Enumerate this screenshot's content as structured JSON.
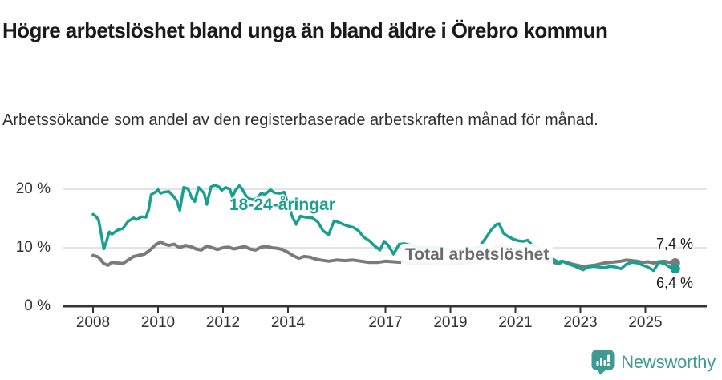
{
  "header": {
    "title": "Högre arbetslöshet bland unga än bland äldre i Örebro kommun",
    "subtitle": "Arbetssökande som andel av den registerbaserade arbetskraften månad för månad."
  },
  "chart_data": {
    "type": "line",
    "title": "Högre arbetslöshet bland unga än bland äldre i Örebro kommun",
    "subtitle": "Arbetssökande som andel av den registerbaserade arbetskraften månad för månad.",
    "unit": "%",
    "grid": "horizontal-only",
    "x_axis": {
      "range": [
        2007.9,
        2026.1
      ],
      "ticks": [
        {
          "label": "2008",
          "year": 2008
        },
        {
          "label": "2010",
          "year": 2010
        },
        {
          "label": "2012",
          "year": 2012
        },
        {
          "label": "2014",
          "year": 2014
        },
        {
          "label": "2017",
          "year": 2017
        },
        {
          "label": "2019",
          "year": 2019
        },
        {
          "label": "2021",
          "year": 2021
        },
        {
          "label": "2023",
          "year": 2023
        },
        {
          "label": "2025",
          "year": 2025
        }
      ]
    },
    "y_axis": {
      "range": [
        0,
        22
      ],
      "ticks": [
        {
          "label": "0 %",
          "value": 0
        },
        {
          "label": "10 %",
          "value": 10
        },
        {
          "label": "20 %",
          "value": 20
        }
      ]
    },
    "colors": {
      "young_series": "#17a08f",
      "total_series": "#7a7a7a",
      "axis": "#333333",
      "gridline": "#dadada"
    },
    "series": [
      {
        "name": "Total arbetslöshet",
        "color": "#7a7a7a",
        "end_label": "7,4 %",
        "end_value": 7.4,
        "points": [
          [
            2008.0,
            8.7
          ],
          [
            2008.17,
            8.4
          ],
          [
            2008.33,
            7.3
          ],
          [
            2008.46,
            7.0
          ],
          [
            2008.58,
            7.5
          ],
          [
            2008.75,
            7.4
          ],
          [
            2008.92,
            7.3
          ],
          [
            2009.08,
            7.9
          ],
          [
            2009.25,
            8.5
          ],
          [
            2009.42,
            8.7
          ],
          [
            2009.58,
            8.9
          ],
          [
            2009.75,
            9.6
          ],
          [
            2009.92,
            10.5
          ],
          [
            2010.08,
            11.0
          ],
          [
            2010.21,
            10.6
          ],
          [
            2010.33,
            10.4
          ],
          [
            2010.5,
            10.6
          ],
          [
            2010.67,
            10.0
          ],
          [
            2010.83,
            10.4
          ],
          [
            2011.0,
            10.2
          ],
          [
            2011.17,
            9.8
          ],
          [
            2011.33,
            9.6
          ],
          [
            2011.5,
            10.3
          ],
          [
            2011.67,
            10.0
          ],
          [
            2011.83,
            9.7
          ],
          [
            2012.0,
            10.0
          ],
          [
            2012.17,
            10.1
          ],
          [
            2012.33,
            9.8
          ],
          [
            2012.5,
            10.0
          ],
          [
            2012.67,
            10.2
          ],
          [
            2012.83,
            9.8
          ],
          [
            2013.0,
            9.6
          ],
          [
            2013.17,
            10.1
          ],
          [
            2013.33,
            10.2
          ],
          [
            2013.5,
            10.0
          ],
          [
            2013.67,
            9.9
          ],
          [
            2013.83,
            9.7
          ],
          [
            2014.0,
            9.2
          ],
          [
            2014.17,
            8.6
          ],
          [
            2014.33,
            8.2
          ],
          [
            2014.5,
            8.5
          ],
          [
            2014.67,
            8.4
          ],
          [
            2014.83,
            8.1
          ],
          [
            2015.0,
            7.9
          ],
          [
            2015.25,
            7.7
          ],
          [
            2015.5,
            7.9
          ],
          [
            2015.75,
            7.8
          ],
          [
            2016.0,
            7.9
          ],
          [
            2016.25,
            7.7
          ],
          [
            2016.5,
            7.5
          ],
          [
            2016.75,
            7.5
          ],
          [
            2017.0,
            7.7
          ],
          [
            2017.25,
            7.6
          ],
          [
            2017.5,
            7.5
          ],
          [
            2017.75,
            7.4
          ],
          [
            2018.0,
            7.4
          ],
          [
            2018.25,
            7.3
          ],
          [
            2018.5,
            7.2
          ],
          [
            2018.75,
            7.2
          ],
          [
            2019.0,
            7.2
          ],
          [
            2019.25,
            7.3
          ],
          [
            2019.5,
            7.4
          ],
          [
            2019.75,
            7.5
          ],
          [
            2019.92,
            7.7
          ],
          [
            2020.08,
            8.5
          ],
          [
            2020.25,
            9.6
          ],
          [
            2020.42,
            10.2
          ],
          [
            2020.58,
            10.4
          ],
          [
            2020.75,
            10.1
          ],
          [
            2020.92,
            9.8
          ],
          [
            2021.08,
            9.4
          ],
          [
            2021.25,
            9.1
          ],
          [
            2021.42,
            8.8
          ],
          [
            2021.58,
            8.5
          ],
          [
            2021.75,
            8.2
          ],
          [
            2021.92,
            7.9
          ],
          [
            2022.08,
            7.6
          ],
          [
            2022.25,
            7.4
          ],
          [
            2022.42,
            7.7
          ],
          [
            2022.58,
            7.5
          ],
          [
            2022.75,
            7.2
          ],
          [
            2022.92,
            7.0
          ],
          [
            2023.08,
            6.8
          ],
          [
            2023.25,
            6.9
          ],
          [
            2023.42,
            7.0
          ],
          [
            2023.58,
            7.2
          ],
          [
            2023.75,
            7.4
          ],
          [
            2023.92,
            7.5
          ],
          [
            2024.08,
            7.6
          ],
          [
            2024.25,
            7.7
          ],
          [
            2024.42,
            7.9
          ],
          [
            2024.58,
            7.8
          ],
          [
            2024.75,
            7.7
          ],
          [
            2024.92,
            7.5
          ],
          [
            2025.08,
            7.6
          ],
          [
            2025.25,
            7.4
          ],
          [
            2025.42,
            7.6
          ],
          [
            2025.58,
            7.7
          ],
          [
            2025.75,
            7.5
          ],
          [
            2025.92,
            7.4
          ]
        ]
      },
      {
        "name": "18-24-åringar",
        "color": "#17a08f",
        "end_label": "6,4 %",
        "end_value": 6.4,
        "points": [
          [
            2008.0,
            15.7
          ],
          [
            2008.08,
            15.4
          ],
          [
            2008.17,
            14.8
          ],
          [
            2008.33,
            9.8
          ],
          [
            2008.42,
            11.2
          ],
          [
            2008.5,
            12.7
          ],
          [
            2008.58,
            12.3
          ],
          [
            2008.75,
            13.0
          ],
          [
            2008.92,
            13.3
          ],
          [
            2009.08,
            14.5
          ],
          [
            2009.25,
            15.1
          ],
          [
            2009.33,
            14.8
          ],
          [
            2009.5,
            15.3
          ],
          [
            2009.63,
            15.2
          ],
          [
            2009.71,
            16.5
          ],
          [
            2009.79,
            19.1
          ],
          [
            2009.92,
            19.5
          ],
          [
            2010.0,
            19.9
          ],
          [
            2010.08,
            19.3
          ],
          [
            2010.17,
            19.5
          ],
          [
            2010.33,
            19.6
          ],
          [
            2010.46,
            18.9
          ],
          [
            2010.58,
            18.0
          ],
          [
            2010.67,
            16.4
          ],
          [
            2010.79,
            20.3
          ],
          [
            2010.92,
            20.1
          ],
          [
            2011.04,
            18.5
          ],
          [
            2011.13,
            17.9
          ],
          [
            2011.25,
            20.3
          ],
          [
            2011.42,
            19.3
          ],
          [
            2011.5,
            17.4
          ],
          [
            2011.63,
            20.4
          ],
          [
            2011.75,
            20.7
          ],
          [
            2011.88,
            20.4
          ],
          [
            2011.96,
            19.8
          ],
          [
            2012.08,
            20.3
          ],
          [
            2012.21,
            20.0
          ],
          [
            2012.29,
            18.7
          ],
          [
            2012.38,
            19.8
          ],
          [
            2012.5,
            20.6
          ],
          [
            2012.58,
            20.1
          ],
          [
            2012.75,
            18.5
          ],
          [
            2012.92,
            18.2
          ],
          [
            2013.04,
            18.4
          ],
          [
            2013.17,
            19.3
          ],
          [
            2013.29,
            19.1
          ],
          [
            2013.46,
            19.9
          ],
          [
            2013.58,
            19.4
          ],
          [
            2013.75,
            19.3
          ],
          [
            2013.88,
            19.5
          ],
          [
            2014.0,
            17.5
          ],
          [
            2014.13,
            15.3
          ],
          [
            2014.25,
            14.0
          ],
          [
            2014.38,
            15.4
          ],
          [
            2014.54,
            15.2
          ],
          [
            2014.75,
            15.1
          ],
          [
            2014.92,
            14.4
          ],
          [
            2015.08,
            12.9
          ],
          [
            2015.25,
            12.2
          ],
          [
            2015.42,
            14.6
          ],
          [
            2015.58,
            14.3
          ],
          [
            2015.79,
            13.8
          ],
          [
            2016.0,
            13.5
          ],
          [
            2016.17,
            12.9
          ],
          [
            2016.33,
            11.8
          ],
          [
            2016.5,
            11.2
          ],
          [
            2016.67,
            10.3
          ],
          [
            2016.83,
            9.6
          ],
          [
            2016.96,
            11.1
          ],
          [
            2017.08,
            10.5
          ],
          [
            2017.25,
            8.9
          ],
          [
            2017.42,
            10.6
          ],
          [
            2017.58,
            10.7
          ],
          [
            2017.79,
            10.4
          ],
          [
            2018.0,
            10.2
          ],
          [
            2018.25,
            10.0
          ],
          [
            2018.5,
            10.1
          ],
          [
            2018.75,
            9.8
          ],
          [
            2019.0,
            9.7
          ],
          [
            2019.25,
            9.6
          ],
          [
            2019.5,
            9.7
          ],
          [
            2019.75,
            9.9
          ],
          [
            2019.92,
            10.4
          ],
          [
            2020.08,
            11.6
          ],
          [
            2020.25,
            13.0
          ],
          [
            2020.42,
            14.0
          ],
          [
            2020.5,
            14.1
          ],
          [
            2020.63,
            12.5
          ],
          [
            2020.75,
            12.0
          ],
          [
            2020.92,
            11.5
          ],
          [
            2021.08,
            11.2
          ],
          [
            2021.25,
            11.1
          ],
          [
            2021.38,
            11.3
          ],
          [
            2021.5,
            10.5
          ],
          [
            2021.63,
            10.2
          ],
          [
            2021.79,
            9.5
          ],
          [
            2021.92,
            8.8
          ],
          [
            2022.08,
            8.2
          ],
          [
            2022.25,
            7.8
          ],
          [
            2022.33,
            7.2
          ],
          [
            2022.46,
            7.7
          ],
          [
            2022.58,
            7.3
          ],
          [
            2022.75,
            7.0
          ],
          [
            2022.92,
            6.6
          ],
          [
            2023.08,
            6.2
          ],
          [
            2023.25,
            6.7
          ],
          [
            2023.42,
            6.8
          ],
          [
            2023.58,
            6.7
          ],
          [
            2023.75,
            6.6
          ],
          [
            2023.92,
            6.8
          ],
          [
            2024.08,
            6.7
          ],
          [
            2024.25,
            6.4
          ],
          [
            2024.42,
            7.2
          ],
          [
            2024.58,
            7.5
          ],
          [
            2024.75,
            7.4
          ],
          [
            2024.92,
            7.0
          ],
          [
            2025.08,
            6.7
          ],
          [
            2025.25,
            6.1
          ],
          [
            2025.42,
            7.5
          ],
          [
            2025.58,
            7.3
          ],
          [
            2025.75,
            6.7
          ],
          [
            2025.92,
            6.4
          ]
        ]
      }
    ]
  },
  "footer": {
    "brand": "Newsworthy",
    "brand_color": "#3e9a94",
    "logo_icon": "newsworthy-speech-bubble-bar-chart-icon"
  }
}
